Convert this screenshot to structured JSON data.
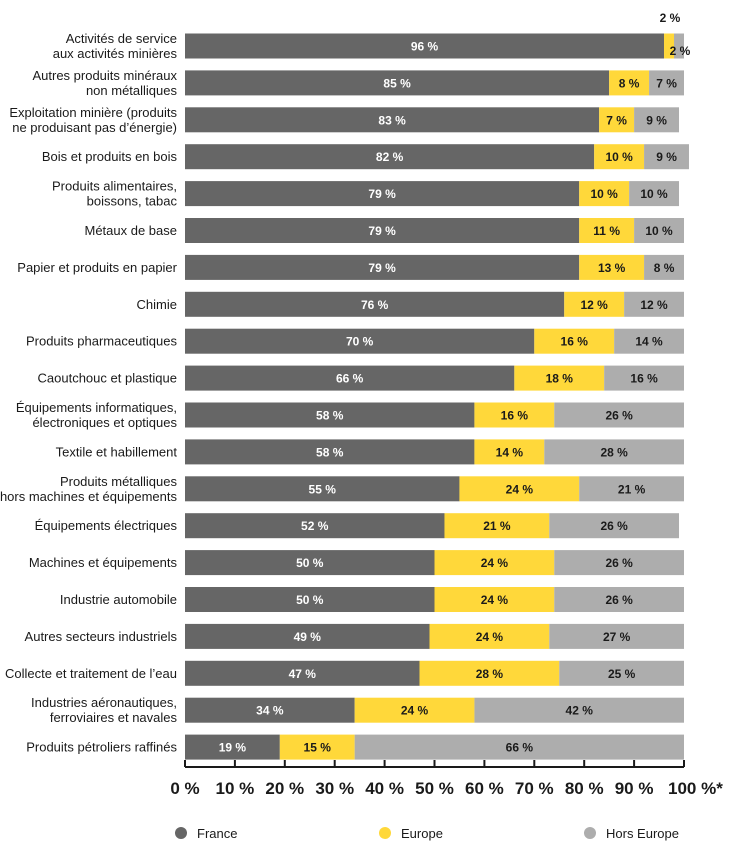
{
  "chart_data": {
    "type": "bar",
    "orientation": "horizontal",
    "stacked": true,
    "categories": [
      [
        "Activités de service",
        "aux activités minières"
      ],
      [
        "Autres produits minéraux",
        "non métalliques"
      ],
      [
        "Exploitation minière (produits",
        "ne produisant pas d’énergie)"
      ],
      [
        "Bois et produits en bois"
      ],
      [
        "Produits alimentaires,",
        "boissons, tabac"
      ],
      [
        "Métaux de base"
      ],
      [
        "Papier et produits en papier"
      ],
      [
        "Chimie"
      ],
      [
        "Produits pharmaceutiques"
      ],
      [
        "Caoutchouc et plastique"
      ],
      [
        "Équipements informatiques,",
        "électroniques et optiques"
      ],
      [
        "Textile et habillement"
      ],
      [
        "Produits métalliques",
        "hors machines et équipements"
      ],
      [
        "Équipements électriques"
      ],
      [
        "Machines et équipements"
      ],
      [
        "Industrie automobile"
      ],
      [
        "Autres secteurs industriels"
      ],
      [
        "Collecte et traitement de l’eau"
      ],
      [
        "Industries aéronautiques,",
        "ferroviaires et navales"
      ],
      [
        "Produits pétroliers raffinés"
      ]
    ],
    "series": [
      {
        "name": "France",
        "color": "#666666",
        "label_color": "#ffffff",
        "values": [
          96,
          85,
          83,
          82,
          79,
          79,
          79,
          76,
          70,
          66,
          58,
          58,
          55,
          52,
          50,
          50,
          49,
          47,
          34,
          19
        ],
        "labels": [
          "96 %",
          "85 %",
          "83 %",
          "82 %",
          "79 %",
          "79 %",
          "79 %",
          "76 %",
          "70 %",
          "66 %",
          "58 %",
          "58 %",
          "55 %",
          "52 %",
          "50 %",
          "50 %",
          "49 %",
          "47 %",
          "34 %",
          "19 %"
        ]
      },
      {
        "name": "Europe",
        "color": "#ffd83a",
        "label_color": "#1a1a1a",
        "values": [
          2,
          8,
          7,
          10,
          10,
          11,
          13,
          12,
          16,
          18,
          16,
          14,
          24,
          21,
          24,
          24,
          24,
          28,
          24,
          15
        ],
        "labels": [
          "2 %",
          "8 %",
          "7 %",
          "10 %",
          "10 %",
          "11 %",
          "13 %",
          "12 %",
          "16 %",
          "18 %",
          "16 %",
          "14 %",
          "24 %",
          "21 %",
          "24 %",
          "24 %",
          "24 %",
          "28 %",
          "24 %",
          "15 %"
        ]
      },
      {
        "name": "Hors Europe",
        "color": "#adadad",
        "label_color": "#1a1a1a",
        "values": [
          2,
          7,
          9,
          9,
          10,
          10,
          8,
          12,
          14,
          16,
          26,
          28,
          21,
          26,
          26,
          26,
          27,
          25,
          42,
          66
        ],
        "labels": [
          "2 %",
          "7 %",
          "9 %",
          "9 %",
          "10 %",
          "10 %",
          "8 %",
          "12 %",
          "14 %",
          "16 %",
          "26 %",
          "28 %",
          "21 %",
          "26 %",
          "26 %",
          "26 %",
          "27 %",
          "25 %",
          "42 %",
          "66 %"
        ]
      }
    ],
    "x_ticks": [
      0,
      10,
      20,
      30,
      40,
      50,
      60,
      70,
      80,
      90,
      100
    ],
    "x_tick_labels": [
      "0 %",
      "10 %",
      "20 %",
      "30 %",
      "40 %",
      "50 %",
      "60 %",
      "70 %",
      "80 %",
      "90 %",
      "100 %*"
    ],
    "xlim": [
      0,
      100
    ],
    "grid": false,
    "legend_position": "bottom"
  }
}
